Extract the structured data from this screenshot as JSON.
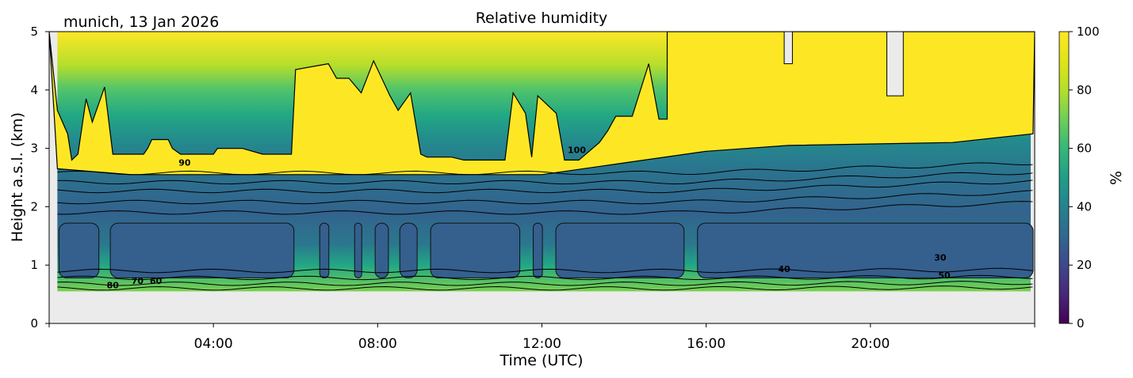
{
  "chart_data": {
    "type": "heatmap",
    "title": "Relative humidity",
    "subtitle": "munich, 13 Jan 2026",
    "xlabel": "Time (UTC)",
    "ylabel": "Height a.s.l. (km)",
    "xlim_hours": [
      0,
      24
    ],
    "ylim": [
      0,
      5
    ],
    "x_ticks": [
      {
        "hour": 0,
        "label": ""
      },
      {
        "hour": 4,
        "label": "04:00"
      },
      {
        "hour": 8,
        "label": "08:00"
      },
      {
        "hour": 12,
        "label": "12:00"
      },
      {
        "hour": 16,
        "label": "16:00"
      },
      {
        "hour": 20,
        "label": "20:00"
      },
      {
        "hour": 24,
        "label": ""
      }
    ],
    "y_ticks": [
      {
        "value": 0,
        "label": "0"
      },
      {
        "value": 1,
        "label": "1"
      },
      {
        "value": 2,
        "label": "2"
      },
      {
        "value": 3,
        "label": "3"
      },
      {
        "value": 4,
        "label": "4"
      },
      {
        "value": 5,
        "label": "5"
      }
    ],
    "colorbar": {
      "label": "%",
      "range": [
        0,
        100
      ],
      "ticks": [
        {
          "value": 0,
          "label": "0"
        },
        {
          "value": 20,
          "label": "20"
        },
        {
          "value": 40,
          "label": "40"
        },
        {
          "value": 60,
          "label": "60"
        },
        {
          "value": 80,
          "label": "80"
        },
        {
          "value": 100,
          "label": "100"
        }
      ],
      "colormap": "viridis"
    },
    "data_bottom_km": 0.55,
    "contour_levels": [
      30,
      40,
      50,
      60,
      70,
      80,
      90,
      100
    ],
    "contour_labels": [
      {
        "text": "90",
        "hour": 3.3,
        "km": 2.7
      },
      {
        "text": "80",
        "hour": 1.55,
        "km": 0.6
      },
      {
        "text": "70",
        "hour": 2.15,
        "km": 0.68
      },
      {
        "text": "60",
        "hour": 2.6,
        "km": 0.68
      },
      {
        "text": "100",
        "hour": 12.85,
        "km": 2.92
      },
      {
        "text": "40",
        "hour": 17.9,
        "km": 0.88
      },
      {
        "text": "30",
        "hour": 21.7,
        "km": 1.08
      },
      {
        "text": "50",
        "hour": 21.8,
        "km": 0.77
      }
    ],
    "saturated_top_km": [
      [
        0.0,
        5.0
      ],
      [
        0.2,
        3.65
      ],
      [
        0.45,
        3.25
      ],
      [
        0.55,
        2.8
      ],
      [
        0.7,
        2.9
      ],
      [
        0.9,
        3.85
      ],
      [
        1.05,
        3.45
      ],
      [
        1.35,
        4.05
      ],
      [
        1.55,
        2.9
      ],
      [
        2.3,
        2.9
      ],
      [
        2.4,
        3.0
      ],
      [
        2.5,
        3.15
      ],
      [
        2.9,
        3.15
      ],
      [
        3.0,
        3.0
      ],
      [
        3.2,
        2.9
      ],
      [
        4.0,
        2.9
      ],
      [
        4.1,
        3.0
      ],
      [
        4.7,
        3.0
      ],
      [
        5.2,
        2.9
      ],
      [
        5.9,
        2.9
      ],
      [
        6.0,
        4.35
      ],
      [
        6.8,
        4.45
      ],
      [
        7.0,
        4.2
      ],
      [
        7.3,
        4.2
      ],
      [
        7.6,
        3.95
      ],
      [
        7.9,
        4.5
      ],
      [
        8.3,
        3.9
      ],
      [
        8.5,
        3.65
      ],
      [
        8.8,
        3.95
      ],
      [
        9.05,
        2.9
      ],
      [
        9.2,
        2.85
      ],
      [
        9.8,
        2.85
      ],
      [
        10.1,
        2.8
      ],
      [
        11.1,
        2.8
      ],
      [
        11.3,
        3.95
      ],
      [
        11.6,
        3.6
      ],
      [
        11.75,
        2.85
      ],
      [
        11.9,
        3.9
      ],
      [
        12.35,
        3.6
      ],
      [
        12.55,
        2.8
      ],
      [
        12.9,
        2.8
      ],
      [
        13.15,
        2.95
      ],
      [
        13.4,
        3.1
      ],
      [
        13.6,
        3.3
      ],
      [
        13.8,
        3.55
      ],
      [
        14.2,
        3.55
      ],
      [
        14.6,
        4.45
      ],
      [
        14.85,
        3.5
      ],
      [
        15.05,
        3.5
      ],
      [
        15.05,
        5.0
      ],
      [
        24.0,
        5.0
      ]
    ],
    "clear_gaps_in_saturated_layer": [
      {
        "from_hour": 17.9,
        "to_hour": 18.1,
        "down_to_km": 4.45
      },
      {
        "from_hour": 20.4,
        "to_hour": 20.8,
        "down_to_km": 3.9
      }
    ],
    "dry_core_blocks_hours": [
      [
        0.2,
        1.25
      ],
      [
        1.45,
        6.0
      ],
      [
        6.55,
        6.85
      ],
      [
        7.4,
        7.65
      ],
      [
        7.9,
        8.3
      ],
      [
        8.5,
        9.0
      ],
      [
        9.25,
        11.5
      ],
      [
        11.75,
        12.05
      ],
      [
        12.3,
        15.5
      ],
      [
        15.75,
        24.0
      ]
    ]
  }
}
